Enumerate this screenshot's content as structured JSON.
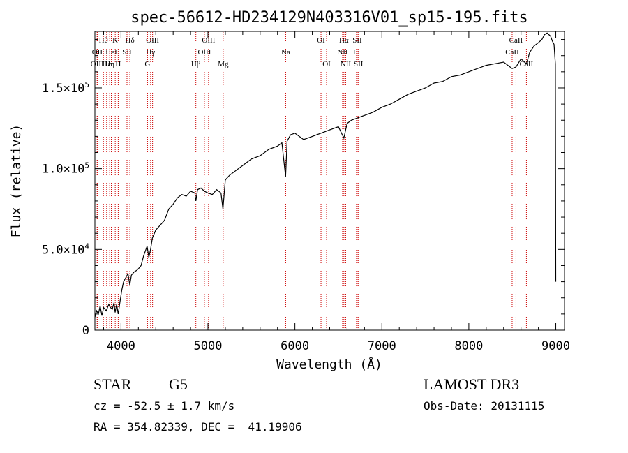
{
  "chart_data": {
    "type": "line",
    "title": "spec-56612-HD234129N403316V01_sp15-195.fits",
    "xlabel": "Wavelength (Å)",
    "ylabel": "Flux (relative)",
    "xlim": [
      3700,
      9100
    ],
    "ylim": [
      0,
      185000
    ],
    "xticks": [
      4000,
      5000,
      6000,
      7000,
      8000,
      9000
    ],
    "xtick_labels": [
      "4000",
      "5000",
      "6000",
      "7000",
      "8000",
      "9000"
    ],
    "yticks": [
      0,
      50000,
      100000,
      150000
    ],
    "ytick_labels": [
      {
        "m": "0",
        "e": ""
      },
      {
        "m": "5.0×10",
        "e": "4"
      },
      {
        "m": "1.0×10",
        "e": "5"
      },
      {
        "m": "1.5×10",
        "e": "5"
      }
    ],
    "grid": false,
    "series": [
      {
        "color": "#000000",
        "x": [
          3700,
          3720,
          3740,
          3760,
          3780,
          3800,
          3830,
          3860,
          3880,
          3900,
          3920,
          3933,
          3950,
          3968,
          3990,
          4010,
          4030,
          4050,
          4080,
          4101,
          4120,
          4150,
          4180,
          4200,
          4230,
          4260,
          4300,
          4320,
          4340,
          4360,
          4400,
          4450,
          4500,
          4550,
          4600,
          4650,
          4700,
          4750,
          4800,
          4850,
          4861,
          4880,
          4920,
          4960,
          5000,
          5050,
          5100,
          5150,
          5172,
          5200,
          5250,
          5300,
          5400,
          5500,
          5600,
          5700,
          5800,
          5850,
          5893,
          5910,
          5950,
          6000,
          6050,
          6100,
          6150,
          6200,
          6250,
          6300,
          6350,
          6400,
          6450,
          6500,
          6563,
          6600,
          6650,
          6700,
          6750,
          6800,
          6900,
          7000,
          7100,
          7200,
          7300,
          7400,
          7500,
          7600,
          7700,
          7800,
          7900,
          8000,
          8100,
          8200,
          8300,
          8400,
          8498,
          8542,
          8600,
          8662,
          8700,
          8750,
          8800,
          8840,
          8870,
          8900,
          8940,
          8960,
          8980,
          8995,
          9000
        ],
        "y": [
          8000,
          12000,
          10000,
          15000,
          9000,
          14000,
          12000,
          16000,
          14000,
          13000,
          17000,
          11000,
          16000,
          10000,
          18000,
          25000,
          30000,
          32000,
          35000,
          28000,
          34000,
          36000,
          37000,
          38000,
          40000,
          46000,
          52000,
          45000,
          50000,
          57000,
          62000,
          65000,
          68000,
          75000,
          78000,
          82000,
          84000,
          83000,
          86000,
          85000,
          80000,
          87000,
          88000,
          86000,
          85000,
          84000,
          87000,
          85000,
          75000,
          93000,
          96000,
          98000,
          102000,
          106000,
          108000,
          112000,
          114000,
          116000,
          95000,
          117000,
          121000,
          122000,
          120000,
          118000,
          119000,
          120000,
          121000,
          122000,
          123000,
          124000,
          125000,
          126000,
          119000,
          128000,
          130000,
          131000,
          132000,
          133000,
          135000,
          138000,
          140000,
          143000,
          146000,
          148000,
          150000,
          153000,
          154000,
          157000,
          158000,
          160000,
          162000,
          164000,
          165000,
          166000,
          162000,
          163000,
          168000,
          165000,
          172000,
          176000,
          178000,
          180000,
          183000,
          184000,
          182000,
          179000,
          177000,
          165000,
          30000
        ]
      }
    ],
    "line_marker_color": "#cc0000",
    "spectral_lines": [
      {
        "label": "Hθ",
        "wave": 3798,
        "row": 0
      },
      {
        "label": "OII",
        "wave": 3727,
        "row": 1
      },
      {
        "label": "OIII",
        "wave": 3726,
        "row": 2
      },
      {
        "label": "Hε",
        "wave": 3835,
        "row": 2
      },
      {
        "label": "HeI",
        "wave": 3889,
        "row": 1
      },
      {
        "label": "K",
        "wave": 3934,
        "row": 0
      },
      {
        "label": "H",
        "wave": 3968,
        "row": 2
      },
      {
        "label": "Hη",
        "wave": 3870,
        "row": 2
      },
      {
        "label": "Hδ",
        "wave": 4102,
        "row": 0
      },
      {
        "label": "SII",
        "wave": 4069,
        "row": 1
      },
      {
        "label": "OIII",
        "wave": 4363,
        "row": 0
      },
      {
        "label": "Hγ",
        "wave": 4341,
        "row": 1
      },
      {
        "label": "G",
        "wave": 4305,
        "row": 2
      },
      {
        "label": "Hβ",
        "wave": 4861,
        "row": 2
      },
      {
        "label": "OIII",
        "wave": 4959,
        "row": 1
      },
      {
        "label": "OIII",
        "wave": 5007,
        "row": 0
      },
      {
        "label": "Mg",
        "wave": 5175,
        "row": 2
      },
      {
        "label": "Na",
        "wave": 5894,
        "row": 1
      },
      {
        "label": "OI",
        "wave": 6300,
        "row": 0
      },
      {
        "label": "OI",
        "wave": 6364,
        "row": 2
      },
      {
        "label": "Hα",
        "wave": 6563,
        "row": 0
      },
      {
        "label": "NII",
        "wave": 6548,
        "row": 1
      },
      {
        "label": "NII",
        "wave": 6584,
        "row": 2
      },
      {
        "label": "SII",
        "wave": 6717,
        "row": 0
      },
      {
        "label": "Li",
        "wave": 6708,
        "row": 1
      },
      {
        "label": "SII",
        "wave": 6731,
        "row": 2
      },
      {
        "label": "CaII",
        "wave": 8498,
        "row": 1
      },
      {
        "label": "CaII",
        "wave": 8542,
        "row": 0
      },
      {
        "label": "CaII",
        "wave": 8662,
        "row": 2
      }
    ]
  },
  "info": {
    "object_class": "STAR",
    "subclass": "G5",
    "survey": "LAMOST DR3",
    "cz": "cz = -52.5 ± 1.7 km/s",
    "obs_date": "Obs-Date: 20131115",
    "coords": "RA = 354.82339, DEC =  41.19906"
  }
}
